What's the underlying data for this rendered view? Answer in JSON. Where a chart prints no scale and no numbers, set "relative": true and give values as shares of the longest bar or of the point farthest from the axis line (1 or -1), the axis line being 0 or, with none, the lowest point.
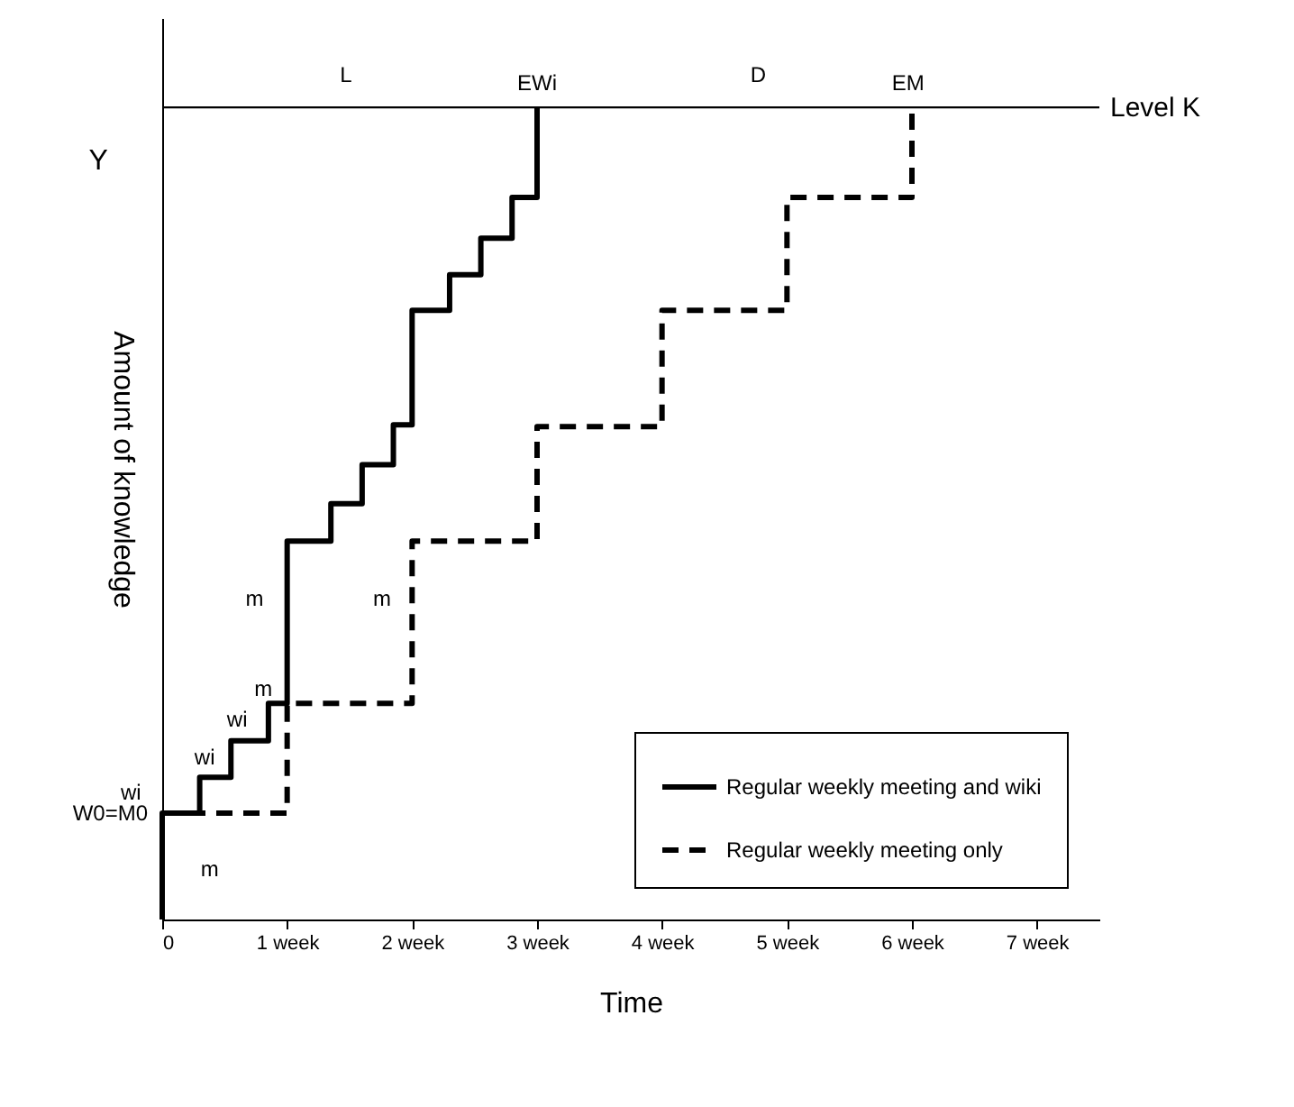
{
  "chart_data": {
    "type": "step",
    "relative": true,
    "xlabel": "Time",
    "ylabel": "Amount of knowledge",
    "xlim": [
      0,
      7.5
    ],
    "xticks": [
      0,
      {
        "value": 1,
        "label": "1 week"
      },
      {
        "value": 2,
        "label": "2 week"
      },
      {
        "value": 3,
        "label": "3 week"
      },
      {
        "value": 4,
        "label": "4 week"
      },
      {
        "value": 5,
        "label": "5 week"
      },
      {
        "value": 6,
        "label": "6 week"
      },
      {
        "value": 7,
        "label": "7 week"
      }
    ],
    "grid": false,
    "legend": "bottom right",
    "marker": "none",
    "series": [
      {
        "name": "Regular weekly meeting and wiki",
        "color": "#000000",
        "line_style": "solid",
        "x": [
          0,
          0,
          0.3,
          0.55,
          0.85,
          1,
          1.35,
          1.6,
          1.85,
          2,
          2.3,
          2.55,
          2.8,
          3
        ],
        "values": [
          0,
          0.131,
          0.175,
          0.22,
          0.266,
          0.466,
          0.512,
          0.56,
          0.609,
          0.75,
          0.794,
          0.839,
          0.889,
          1
        ]
      },
      {
        "name": "Regular weekly meeting only",
        "color": "#000000",
        "line_style": "dashed",
        "x": [
          0,
          1,
          2,
          3,
          4,
          5,
          6
        ],
        "values": [
          0.131,
          0.266,
          0.466,
          0.607,
          0.75,
          0.889,
          1
        ]
      }
    ],
    "ref_lines": [
      {
        "axis": "y",
        "value": 1,
        "label": "Level K",
        "color": "#000000"
      }
    ],
    "annotations": [
      "Y",
      {
        "text": "W0=M0",
        "x": 0,
        "y": 0.131
      },
      "L",
      "EWi",
      "D",
      "EM",
      "wi",
      "wi",
      "wi",
      "m",
      "m",
      "m",
      "m"
    ]
  }
}
